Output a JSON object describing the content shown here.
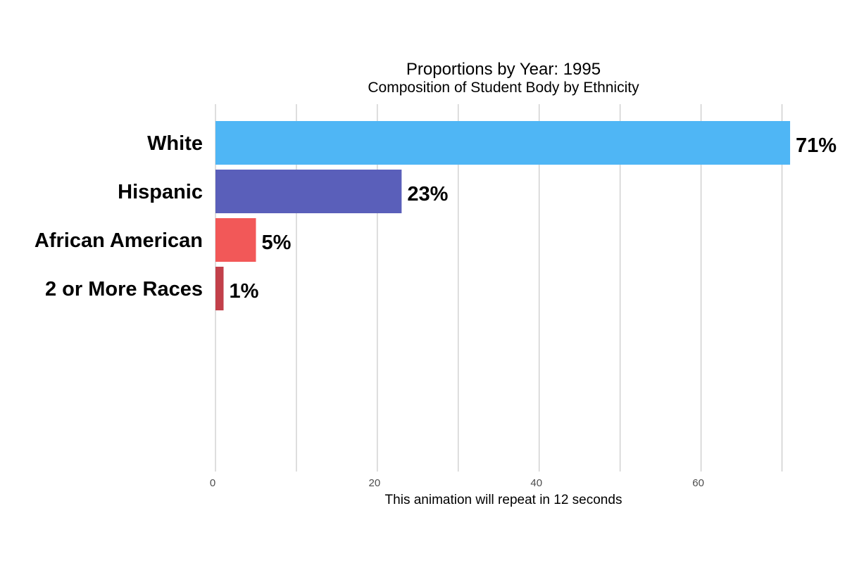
{
  "chart_data": {
    "type": "bar",
    "orientation": "horizontal",
    "title": "Proportions by Year: 1995",
    "subtitle": "Composition of Student Body by Ethnicity",
    "xlabel": "This animation will repeat in 12 seconds",
    "ylabel": "",
    "categories": [
      "White",
      "Hispanic",
      "African American",
      "2 or More Races"
    ],
    "values": [
      71,
      23,
      5,
      1
    ],
    "value_labels": [
      "71%",
      "23%",
      "5%",
      "1%"
    ],
    "colors": [
      "#4fb6f5",
      "#5a5fba",
      "#f25858",
      "#c2404a"
    ],
    "xlim": [
      0,
      77
    ],
    "x_ticks": [
      0,
      20,
      40,
      60
    ],
    "grid_lines": [
      0,
      10,
      20,
      30,
      40,
      50,
      60,
      70
    ],
    "grid": true,
    "legend": "none"
  }
}
